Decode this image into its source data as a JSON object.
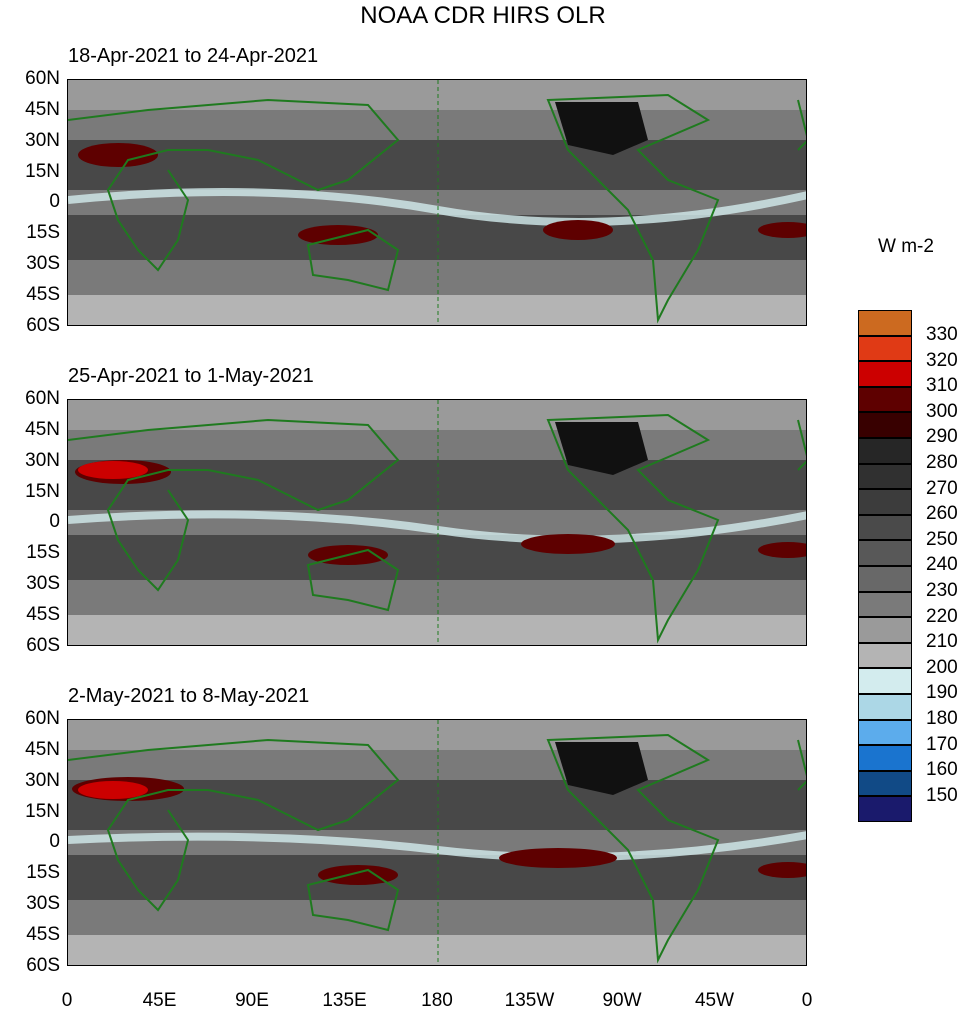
{
  "title": "NOAA CDR HIRS OLR",
  "units": "W m-2",
  "panels": [
    {
      "title": "18-Apr-2021 to 24-Apr-2021"
    },
    {
      "title": "25-Apr-2021 to 1-May-2021"
    },
    {
      "title": "2-May-2021 to 8-May-2021"
    }
  ],
  "lat_labels": [
    "60N",
    "45N",
    "30N",
    "15N",
    "0",
    "15S",
    "30S",
    "45S",
    "60S"
  ],
  "lon_labels": [
    "0",
    "45E",
    "90E",
    "135E",
    "180",
    "135W",
    "90W",
    "45W",
    "0"
  ],
  "colorbar": {
    "labels": [
      "330",
      "320",
      "310",
      "300",
      "290",
      "280",
      "270",
      "260",
      "250",
      "240",
      "230",
      "220",
      "210",
      "200",
      "190",
      "180",
      "170",
      "160",
      "150"
    ],
    "colors": [
      "#cc6a20",
      "#e03a15",
      "#cc0000",
      "#5e0000",
      "#380000",
      "#262626",
      "#303030",
      "#3c3c3c",
      "#4a4a4a",
      "#585858",
      "#686868",
      "#7a7a7a",
      "#9a9a9a",
      "#b4b4b4",
      "#d3ecee",
      "#acd7e6",
      "#5cacec",
      "#1a74cf",
      "#114a86",
      "#1a1a6c"
    ]
  },
  "coast_color": "#1f7a1f"
}
